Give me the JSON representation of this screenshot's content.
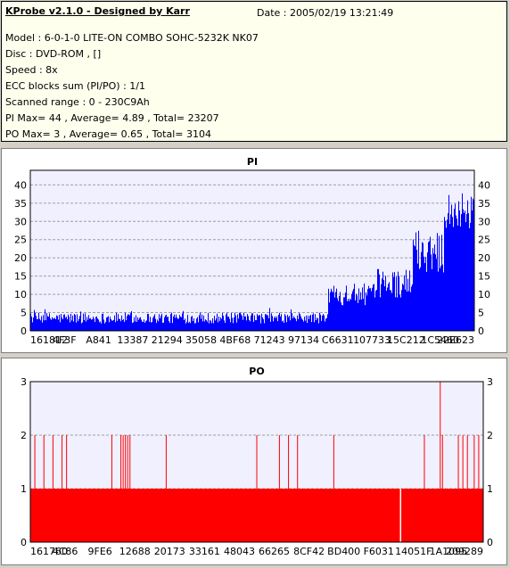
{
  "app": {
    "title": "KProbe v2.1.0 - Designed by Karr",
    "date": "Date : 2005/02/19 13:21:49"
  },
  "info": {
    "lines": [
      "Model : 6-0-1-0 LITE-ON COMBO SOHC-5232K NK07",
      "Disc : DVD-ROM ,  []",
      "Speed : 8x",
      "ECC blocks sum (PI/PO) : 1/1",
      "Scanned range : 0 - 230C9Ah",
      "PI Max= 44 , Average= 4.89 , Total= 23207",
      "PO Max= 3 , Average= 0.65 , Total= 3104"
    ]
  },
  "colors": {
    "pi_fill": "#0000ff",
    "po_fill": "#ff0000",
    "plot_bg": "#f0f0ff",
    "grid": "#a0a0a0"
  },
  "chart_data": [
    {
      "type": "bar",
      "title": "PI",
      "ylim": [
        0,
        44
      ],
      "yticks": [
        0,
        5,
        10,
        15,
        20,
        25,
        30,
        35,
        40
      ],
      "grid": true,
      "series": [
        {
          "segments": [
            {
              "from": 0,
              "to": 0.67,
              "base": 2,
              "spread": 3,
              "spike_max": 7
            },
            {
              "from": 0.67,
              "to": 0.78,
              "base": 7,
              "spread": 6,
              "spike_max": 15
            },
            {
              "from": 0.78,
              "to": 0.86,
              "base": 9,
              "spread": 8,
              "spike_max": 20
            },
            {
              "from": 0.86,
              "to": 0.93,
              "base": 16,
              "spread": 12,
              "spike_max": 30
            },
            {
              "from": 0.93,
              "to": 1.0,
              "base": 28,
              "spread": 10,
              "spike_max": 44
            }
          ]
        }
      ],
      "xtick_labels": [
        "161812",
        "4F3F",
        "A841",
        "13387",
        "21294",
        "35058",
        "4BF68",
        "71243",
        "97134",
        "C6631",
        "107733",
        "15C212",
        "1C5460",
        "22E623"
      ]
    },
    {
      "type": "bar",
      "title": "PO",
      "ylim": [
        0,
        3
      ],
      "yticks": [
        0,
        1,
        2,
        3
      ],
      "grid": true,
      "series": [
        {
          "baseline": 1,
          "gaps_at": [
            0.816
          ],
          "spikes_2": [
            0.01,
            0.03,
            0.05,
            0.07,
            0.08,
            0.18,
            0.2,
            0.205,
            0.21,
            0.215,
            0.22,
            0.3,
            0.5,
            0.55,
            0.57,
            0.59,
            0.67,
            0.87,
            0.91,
            0.945,
            0.955,
            0.965,
            0.98,
            0.99
          ],
          "spikes_3": [
            0.905
          ]
        }
      ],
      "xtick_labels": [
        "161760",
        "4C86",
        "9FE6",
        "12688",
        "20173",
        "33161",
        "48043",
        "66265",
        "8CF42",
        "BD400",
        "F6031",
        "14051F",
        "1A1095",
        "209289"
      ]
    }
  ]
}
